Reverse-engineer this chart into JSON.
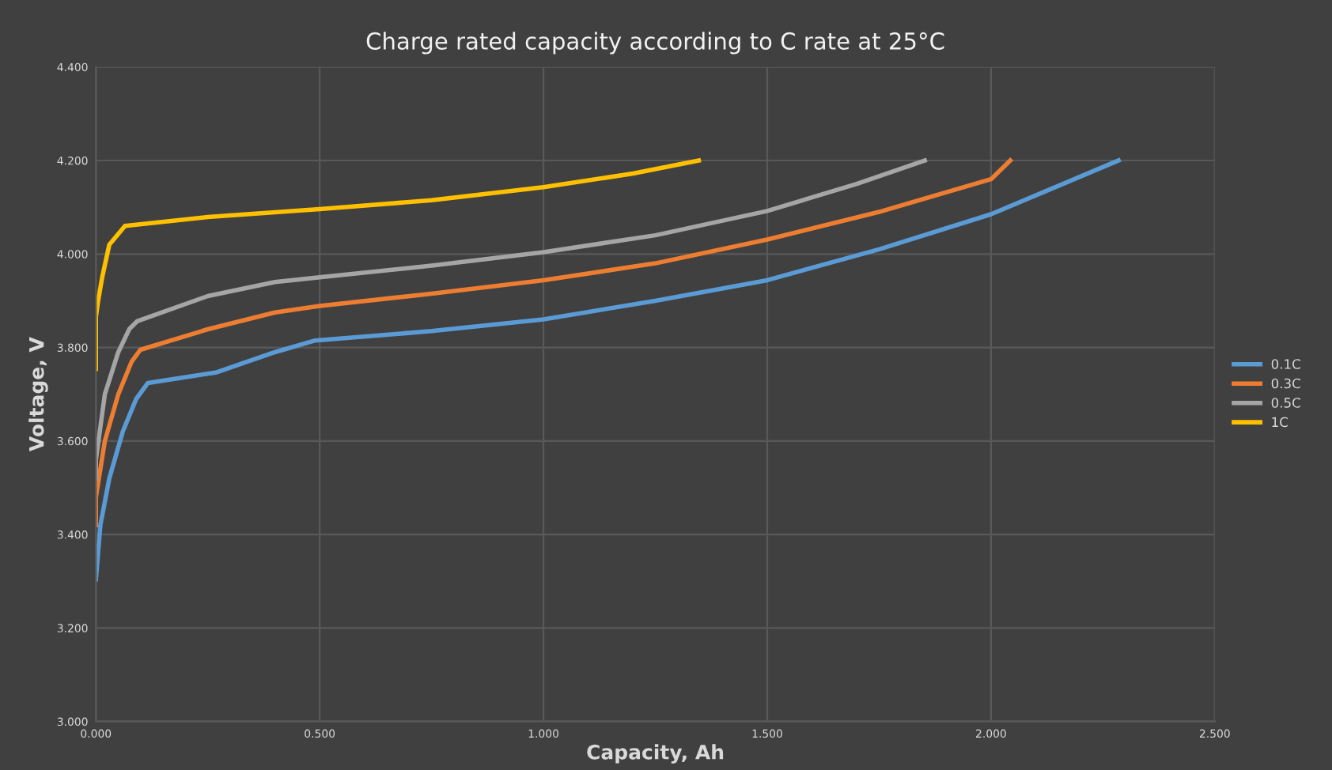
{
  "chart_data": {
    "type": "line",
    "title": "Charge rated capacity according to C rate at 25°C",
    "xlabel": "Capacity, Ah",
    "ylabel": "Voltage, V",
    "xlim": [
      0,
      2.5
    ],
    "xticks": [
      {
        "value": 0,
        "label": "0.000"
      },
      {
        "value": 0.5,
        "label": "0.500"
      },
      {
        "value": 1,
        "label": "1.000"
      },
      {
        "value": 1.5,
        "label": "1.500"
      },
      {
        "value": 2,
        "label": "2.000"
      },
      {
        "value": 2.5,
        "label": "2.500"
      }
    ],
    "ylim": [
      3.0,
      4.4
    ],
    "yticks": [
      {
        "value": 3.0,
        "label": "3.000"
      },
      {
        "value": 3.2,
        "label": "3.200"
      },
      {
        "value": 3.4,
        "label": "3.400"
      },
      {
        "value": 3.6,
        "label": "3.600"
      },
      {
        "value": 3.8,
        "label": "3.800"
      },
      {
        "value": 4.0,
        "label": "4.000"
      },
      {
        "value": 4.2,
        "label": "4.200"
      },
      {
        "value": 4.4,
        "label": "4.400"
      }
    ],
    "grid": true,
    "legend": "right",
    "marker": "none",
    "line_style": "solid",
    "series": [
      {
        "name": "0.1C",
        "color": "#5b9bd5",
        "x": [
          0,
          0.01,
          0.03,
          0.06,
          0.09,
          0.116,
          0.27,
          0.4,
          0.49,
          0.75,
          1.0,
          1.25,
          1.5,
          1.75,
          2.0,
          2.285
        ],
        "values": [
          3.304,
          3.42,
          3.52,
          3.62,
          3.69,
          3.724,
          3.747,
          3.79,
          3.815,
          3.835,
          3.86,
          3.9,
          3.944,
          4.01,
          4.085,
          4.2
        ]
      },
      {
        "name": "0.3C",
        "color": "#ed7d31",
        "x": [
          0,
          0.0,
          0.02,
          0.05,
          0.08,
          0.099,
          0.25,
          0.4,
          0.5,
          0.75,
          1.0,
          1.25,
          1.5,
          1.75,
          2.0,
          2.043
        ],
        "values": [
          3.42,
          3.48,
          3.6,
          3.7,
          3.77,
          3.795,
          3.839,
          3.875,
          3.889,
          3.915,
          3.944,
          3.98,
          4.031,
          4.09,
          4.16,
          4.2
        ]
      },
      {
        "name": "0.5C",
        "color": "#a5a5a5",
        "x": [
          0,
          0.0,
          0.02,
          0.05,
          0.075,
          0.092,
          0.25,
          0.4,
          0.5,
          0.75,
          1.0,
          1.25,
          1.5,
          1.7,
          1.852
        ],
        "values": [
          3.52,
          3.56,
          3.7,
          3.79,
          3.84,
          3.856,
          3.91,
          3.94,
          3.95,
          3.975,
          4.004,
          4.04,
          4.092,
          4.15,
          4.2
        ]
      },
      {
        "name": "1C",
        "color": "#ffc000",
        "x": [
          0,
          0.0,
          0.005,
          0.014,
          0.03,
          0.065,
          0.25,
          0.5,
          0.75,
          1.0,
          1.2,
          1.347
        ],
        "values": [
          3.754,
          3.866,
          3.9,
          3.95,
          4.02,
          4.06,
          4.079,
          4.096,
          4.115,
          4.143,
          4.172,
          4.2
        ]
      }
    ]
  }
}
